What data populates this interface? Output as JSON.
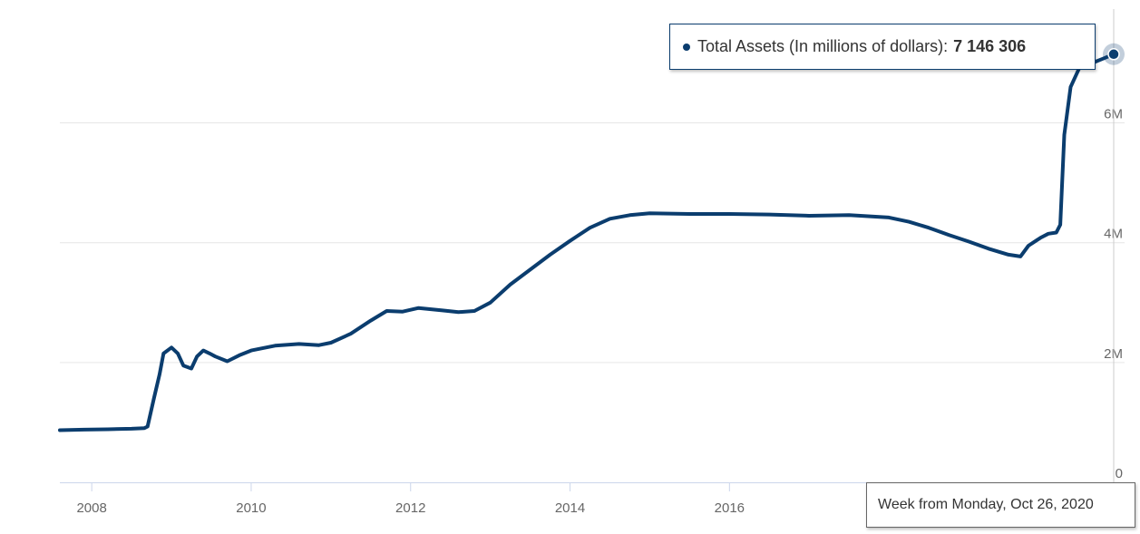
{
  "chart_data": {
    "type": "line",
    "series": [
      {
        "name": "Total Assets (In millions of dollars)",
        "color": "#0b3d6e",
        "points": [
          [
            2007.6,
            870000
          ],
          [
            2007.9,
            880000
          ],
          [
            2008.2,
            885000
          ],
          [
            2008.5,
            895000
          ],
          [
            2008.66,
            905000
          ],
          [
            2008.7,
            930000
          ],
          [
            2008.78,
            1400000
          ],
          [
            2008.85,
            1800000
          ],
          [
            2008.9,
            2150000
          ],
          [
            2009.0,
            2250000
          ],
          [
            2009.08,
            2150000
          ],
          [
            2009.15,
            1950000
          ],
          [
            2009.25,
            1900000
          ],
          [
            2009.32,
            2100000
          ],
          [
            2009.4,
            2200000
          ],
          [
            2009.48,
            2150000
          ],
          [
            2009.55,
            2100000
          ],
          [
            2009.7,
            2020000
          ],
          [
            2009.85,
            2120000
          ],
          [
            2010.0,
            2200000
          ],
          [
            2010.3,
            2280000
          ],
          [
            2010.6,
            2310000
          ],
          [
            2010.85,
            2290000
          ],
          [
            2011.0,
            2330000
          ],
          [
            2011.25,
            2480000
          ],
          [
            2011.5,
            2700000
          ],
          [
            2011.7,
            2860000
          ],
          [
            2011.9,
            2850000
          ],
          [
            2012.1,
            2910000
          ],
          [
            2012.4,
            2870000
          ],
          [
            2012.6,
            2840000
          ],
          [
            2012.8,
            2860000
          ],
          [
            2013.0,
            3000000
          ],
          [
            2013.25,
            3300000
          ],
          [
            2013.5,
            3550000
          ],
          [
            2013.75,
            3800000
          ],
          [
            2014.0,
            4030000
          ],
          [
            2014.25,
            4250000
          ],
          [
            2014.5,
            4400000
          ],
          [
            2014.75,
            4460000
          ],
          [
            2015.0,
            4490000
          ],
          [
            2015.5,
            4480000
          ],
          [
            2016.0,
            4480000
          ],
          [
            2016.5,
            4470000
          ],
          [
            2017.0,
            4450000
          ],
          [
            2017.5,
            4460000
          ],
          [
            2018.0,
            4420000
          ],
          [
            2018.25,
            4350000
          ],
          [
            2018.5,
            4250000
          ],
          [
            2018.75,
            4130000
          ],
          [
            2019.0,
            4020000
          ],
          [
            2019.25,
            3900000
          ],
          [
            2019.5,
            3800000
          ],
          [
            2019.65,
            3770000
          ],
          [
            2019.75,
            3950000
          ],
          [
            2019.9,
            4080000
          ],
          [
            2020.0,
            4150000
          ],
          [
            2020.1,
            4170000
          ],
          [
            2020.15,
            4300000
          ],
          [
            2020.2,
            5800000
          ],
          [
            2020.28,
            6600000
          ],
          [
            2020.4,
            6950000
          ],
          [
            2020.55,
            7000000
          ],
          [
            2020.7,
            7080000
          ],
          [
            2020.82,
            7146306
          ]
        ]
      }
    ],
    "x_ticks": [
      {
        "value": 2008,
        "label": "2008"
      },
      {
        "value": 2010,
        "label": "2010"
      },
      {
        "value": 2012,
        "label": "2012"
      },
      {
        "value": 2014,
        "label": "2014"
      },
      {
        "value": 2016,
        "label": "2016"
      }
    ],
    "y_ticks": [
      {
        "value": 0,
        "label": "0"
      },
      {
        "value": 2000000,
        "label": "2M"
      },
      {
        "value": 4000000,
        "label": "4M"
      },
      {
        "value": 6000000,
        "label": "6M"
      }
    ],
    "xlim": [
      2007.6,
      2020.82
    ],
    "ylim": [
      0,
      7900000
    ],
    "y_axis_side": "right",
    "grid": "horizontal",
    "tooltip": {
      "series_label": "Total Assets (In millions of dollars):",
      "value": "7 146 306"
    },
    "x_tooltip": "Week from Monday, Oct 26, 2020"
  }
}
